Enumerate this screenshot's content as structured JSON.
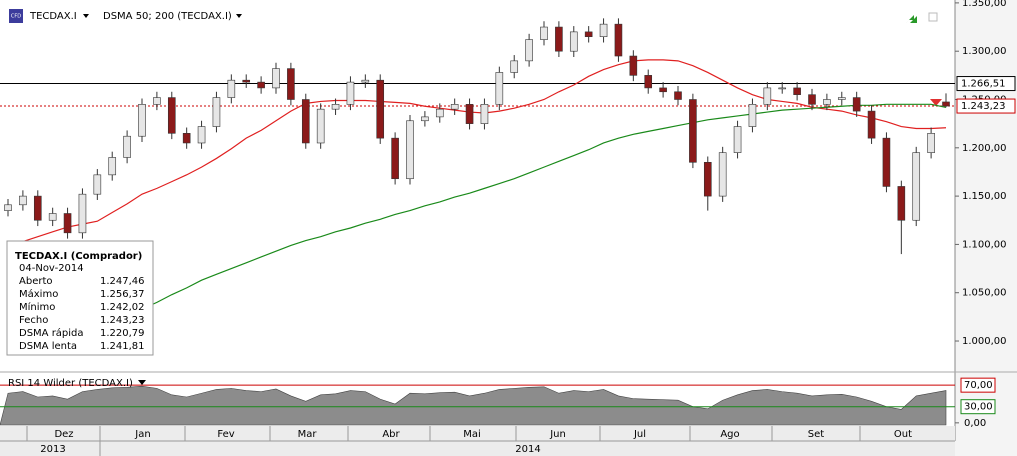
{
  "toolbar": {
    "icon": "CFD",
    "symbol": "TECDAX.I",
    "indicator": "DSMA 50; 200 (TECDAX.I)"
  },
  "chart_data": {
    "type": "candlestick",
    "ylim": [
      970,
      1353
    ],
    "yticks": [
      {
        "value": 1000,
        "label": "1.000,00"
      },
      {
        "value": 1050,
        "label": "1.050,00"
      },
      {
        "value": 1100,
        "label": "1.100,00"
      },
      {
        "value": 1150,
        "label": "1.150,00"
      },
      {
        "value": 1200,
        "label": "1.200,00"
      },
      {
        "value": 1250,
        "label": "1.250,00"
      },
      {
        "value": 1300,
        "label": "1.300,00"
      },
      {
        "value": 1350,
        "label": "1.350,00"
      }
    ],
    "open": [
      1135,
      1141,
      1150,
      1125,
      1132,
      1112,
      1152,
      1172,
      1190,
      1212,
      1245,
      1252,
      1215,
      1205,
      1222,
      1252,
      1270,
      1268,
      1262,
      1282,
      1250,
      1205,
      1240,
      1245,
      1268,
      1270,
      1210,
      1168,
      1228,
      1232,
      1240,
      1245,
      1225,
      1245,
      1278,
      1290,
      1312,
      1325,
      1300,
      1320,
      1315,
      1328,
      1295,
      1275,
      1262,
      1258,
      1250,
      1185,
      1150,
      1195,
      1222,
      1245,
      1262,
      1262,
      1255,
      1245,
      1250,
      1252,
      1238,
      1210,
      1160,
      1125,
      1195,
      1247.46
    ],
    "high": [
      1147,
      1156,
      1156,
      1138,
      1138,
      1158,
      1178,
      1196,
      1218,
      1251,
      1258,
      1258,
      1221,
      1228,
      1258,
      1276,
      1276,
      1274,
      1288,
      1288,
      1256,
      1246,
      1251,
      1274,
      1276,
      1276,
      1216,
      1234,
      1238,
      1246,
      1251,
      1251,
      1251,
      1284,
      1296,
      1318,
      1331,
      1331,
      1326,
      1326,
      1334,
      1334,
      1301,
      1281,
      1268,
      1264,
      1256,
      1191,
      1201,
      1228,
      1251,
      1268,
      1268,
      1268,
      1261,
      1256,
      1258,
      1258,
      1244,
      1216,
      1166,
      1201,
      1221,
      1256.37
    ],
    "low": [
      1129,
      1135,
      1119,
      1119,
      1106,
      1106,
      1146,
      1166,
      1184,
      1206,
      1239,
      1209,
      1199,
      1199,
      1216,
      1246,
      1262,
      1256,
      1256,
      1244,
      1199,
      1199,
      1234,
      1239,
      1262,
      1204,
      1162,
      1162,
      1222,
      1226,
      1234,
      1219,
      1219,
      1239,
      1272,
      1284,
      1306,
      1294,
      1294,
      1309,
      1309,
      1289,
      1269,
      1256,
      1252,
      1244,
      1179,
      1135,
      1144,
      1189,
      1216,
      1239,
      1256,
      1249,
      1239,
      1239,
      1244,
      1232,
      1204,
      1154,
      1090,
      1119,
      1189,
      1242.02
    ],
    "close": [
      1141,
      1150,
      1125,
      1132,
      1112,
      1152,
      1172,
      1190,
      1212,
      1245,
      1252,
      1215,
      1205,
      1222,
      1252,
      1270,
      1268,
      1262,
      1282,
      1250,
      1205,
      1240,
      1245,
      1268,
      1270,
      1210,
      1168,
      1228,
      1232,
      1240,
      1245,
      1225,
      1245,
      1278,
      1290,
      1312,
      1325,
      1300,
      1320,
      1315,
      1328,
      1295,
      1275,
      1262,
      1258,
      1250,
      1185,
      1150,
      1195,
      1222,
      1245,
      1262,
      1262,
      1255,
      1245,
      1250,
      1252,
      1238,
      1210,
      1160,
      1125,
      1195,
      1215,
      1243.23
    ],
    "up_color": "#e6e6e6",
    "down_color": "#8b1a1a",
    "overlays": [
      {
        "color": "#e02020",
        "values": [
          1099,
          1103,
          1108,
          1113,
          1118,
          1121,
          1124,
          1133,
          1142,
          1152,
          1158,
          1165,
          1172,
          1180,
          1189,
          1199,
          1210,
          1218,
          1228,
          1238,
          1246,
          1248,
          1249,
          1249,
          1249,
          1248,
          1247,
          1246,
          1243,
          1241,
          1239,
          1237,
          1236,
          1238,
          1241,
          1245,
          1250,
          1258,
          1265,
          1274,
          1281,
          1286,
          1290,
          1291,
          1291,
          1290,
          1285,
          1278,
          1270,
          1262,
          1255,
          1250,
          1248,
          1246,
          1242,
          1240,
          1238,
          1234,
          1231,
          1227,
          1222,
          1220,
          1220,
          1220.79
        ]
      },
      {
        "color": "#1a8a1a",
        "values": [
          996,
          998,
          1000,
          1003,
          1006,
          1009,
          1012,
          1018,
          1025,
          1033,
          1040,
          1048,
          1055,
          1063,
          1069,
          1075,
          1081,
          1087,
          1093,
          1099,
          1104,
          1108,
          1113,
          1117,
          1122,
          1126,
          1131,
          1135,
          1140,
          1144,
          1149,
          1153,
          1158,
          1163,
          1168,
          1174,
          1180,
          1186,
          1192,
          1198,
          1205,
          1210,
          1214,
          1217,
          1220,
          1223,
          1226,
          1229,
          1231,
          1233,
          1235,
          1237,
          1239,
          1240,
          1241,
          1242,
          1243,
          1244,
          1244,
          1245,
          1245,
          1245,
          1245,
          1241.81
        ]
      }
    ],
    "reference_lines": [
      {
        "value": 1266.51,
        "label": "1.266,51",
        "color": "#000000"
      },
      {
        "value": 1243.23,
        "label": "1.243,23",
        "color": "#cc0000"
      }
    ],
    "months": [
      "Dez",
      "Jan",
      "Fev",
      "Mar",
      "Abr",
      "Mai",
      "Jun",
      "Jul",
      "Ago",
      "Set",
      "Out"
    ],
    "years": [
      "2013",
      "2014"
    ]
  },
  "info_box": {
    "title": "TECDAX.I (Comprador)",
    "date": "04-Nov-2014",
    "rows": [
      {
        "label": "Aberto",
        "value": "1.247,46",
        "color": "#000000"
      },
      {
        "label": "Máximo",
        "value": "1.256,37",
        "color": "#000000"
      },
      {
        "label": "Mínimo",
        "value": "1.242,02",
        "color": "#000000"
      },
      {
        "label": "Fecho",
        "value": "1.243,23",
        "color": "#cc0000",
        "label_color": "#000000"
      },
      {
        "label": "DSMA rápida",
        "value": "1.220,79",
        "color": "#000000",
        "label_color": "#cc0000"
      },
      {
        "label": "DSMA lenta",
        "value": "1.241,81",
        "color": "#000000",
        "label_color": "#1a8a1a"
      }
    ]
  },
  "rsi": {
    "title": "RSI 14 Wilder (TECDAX.I)",
    "ylim": [
      -4,
      87
    ],
    "yticks": [
      {
        "value": 0,
        "label": "0,00"
      },
      {
        "value": 30,
        "label": "30,00"
      },
      {
        "value": 70,
        "label": "70,00"
      }
    ],
    "level_colors": [
      null,
      "#1a8a1a",
      "#cc0000"
    ],
    "fill": "#8c8c8c",
    "values": [
      55,
      58,
      48,
      50,
      44,
      58,
      62,
      65,
      66,
      68,
      64,
      52,
      48,
      55,
      62,
      64,
      60,
      58,
      63,
      50,
      40,
      52,
      54,
      60,
      58,
      44,
      35,
      55,
      54,
      56,
      57,
      50,
      55,
      62,
      64,
      66,
      67,
      55,
      60,
      58,
      62,
      50,
      45,
      44,
      43,
      42,
      30,
      26,
      42,
      52,
      60,
      62,
      58,
      55,
      50,
      52,
      53,
      48,
      40,
      30,
      25,
      50,
      55,
      60
    ]
  }
}
